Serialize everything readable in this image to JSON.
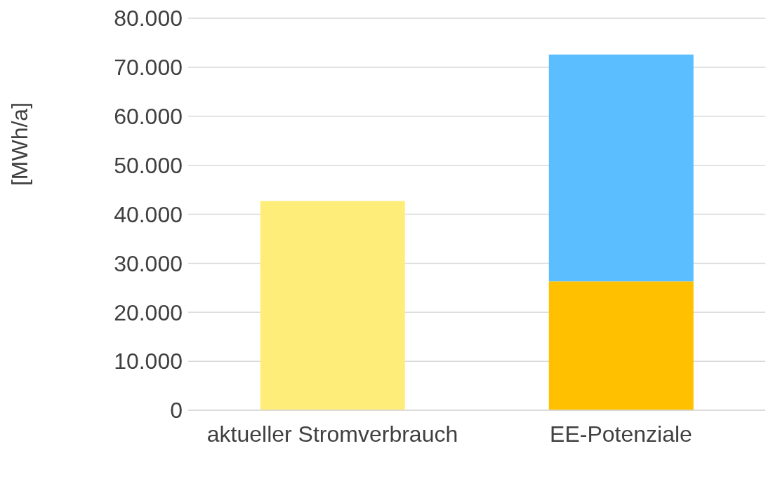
{
  "chart_data": {
    "type": "bar",
    "ylabel": "[MWh/a]",
    "categories": [
      "aktueller Stromverbrauch",
      "EE-Potenziale"
    ],
    "stacked": true,
    "series": [
      {
        "color": "#ffed79",
        "values": [
          42700,
          null
        ]
      },
      {
        "color": "#ffc000",
        "values": [
          null,
          26300
        ]
      },
      {
        "color": "#5bbeff",
        "values": [
          null,
          46300
        ]
      }
    ],
    "ylim": [
      0,
      80000
    ],
    "yticks": [
      {
        "value": 0,
        "label": "0"
      },
      {
        "value": 10000,
        "label": "10.000"
      },
      {
        "value": 20000,
        "label": "20.000"
      },
      {
        "value": 30000,
        "label": "30.000"
      },
      {
        "value": 40000,
        "label": "40.000"
      },
      {
        "value": 50000,
        "label": "50.000"
      },
      {
        "value": 60000,
        "label": "60.000"
      },
      {
        "value": 70000,
        "label": "70.000"
      },
      {
        "value": 80000,
        "label": "80.000"
      }
    ],
    "grid": "y",
    "legend": false
  }
}
